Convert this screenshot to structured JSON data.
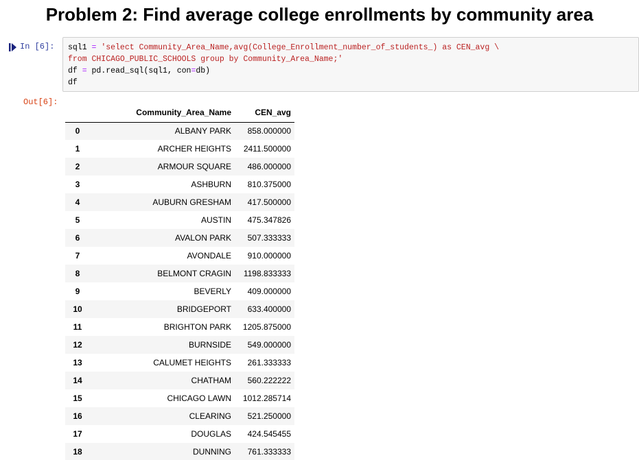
{
  "title": "Problem 2: Find average college enrollments by community area",
  "cell_in": {
    "prompt": "In  [6]:",
    "code": {
      "line1_a": "sql1 ",
      "line1_op": "=",
      "line1_str": " 'select Community_Area_Name,avg(College_Enrollment_number_of_students_) as CEN_avg \\",
      "line2_str": "from CHICAGO_PUBLIC_SCHOOLS group by Community_Area_Name;'",
      "line3_a": "df ",
      "line3_op": "=",
      "line3_b": " pd.read_sql(sql1, con",
      "line3_op2": "=",
      "line3_c": "db)",
      "line4": "df"
    }
  },
  "cell_out": {
    "prompt": "Out[6]:"
  },
  "table": {
    "columns": [
      "Community_Area_Name",
      "CEN_avg"
    ],
    "rows": [
      {
        "index": "0",
        "name": "ALBANY PARK",
        "avg": "858.000000"
      },
      {
        "index": "1",
        "name": "ARCHER HEIGHTS",
        "avg": "2411.500000"
      },
      {
        "index": "2",
        "name": "ARMOUR SQUARE",
        "avg": "486.000000"
      },
      {
        "index": "3",
        "name": "ASHBURN",
        "avg": "810.375000"
      },
      {
        "index": "4",
        "name": "AUBURN GRESHAM",
        "avg": "417.500000"
      },
      {
        "index": "5",
        "name": "AUSTIN",
        "avg": "475.347826"
      },
      {
        "index": "6",
        "name": "AVALON PARK",
        "avg": "507.333333"
      },
      {
        "index": "7",
        "name": "AVONDALE",
        "avg": "910.000000"
      },
      {
        "index": "8",
        "name": "BELMONT CRAGIN",
        "avg": "1198.833333"
      },
      {
        "index": "9",
        "name": "BEVERLY",
        "avg": "409.000000"
      },
      {
        "index": "10",
        "name": "BRIDGEPORT",
        "avg": "633.400000"
      },
      {
        "index": "11",
        "name": "BRIGHTON PARK",
        "avg": "1205.875000"
      },
      {
        "index": "12",
        "name": "BURNSIDE",
        "avg": "549.000000"
      },
      {
        "index": "13",
        "name": "CALUMET HEIGHTS",
        "avg": "261.333333"
      },
      {
        "index": "14",
        "name": "CHATHAM",
        "avg": "560.222222"
      },
      {
        "index": "15",
        "name": "CHICAGO LAWN",
        "avg": "1012.285714"
      },
      {
        "index": "16",
        "name": "CLEARING",
        "avg": "521.250000"
      },
      {
        "index": "17",
        "name": "DOUGLAS",
        "avg": "424.545455"
      },
      {
        "index": "18",
        "name": "DUNNING",
        "avg": "761.333333"
      }
    ]
  },
  "icons": {
    "run_marker": "run-cell-icon"
  }
}
